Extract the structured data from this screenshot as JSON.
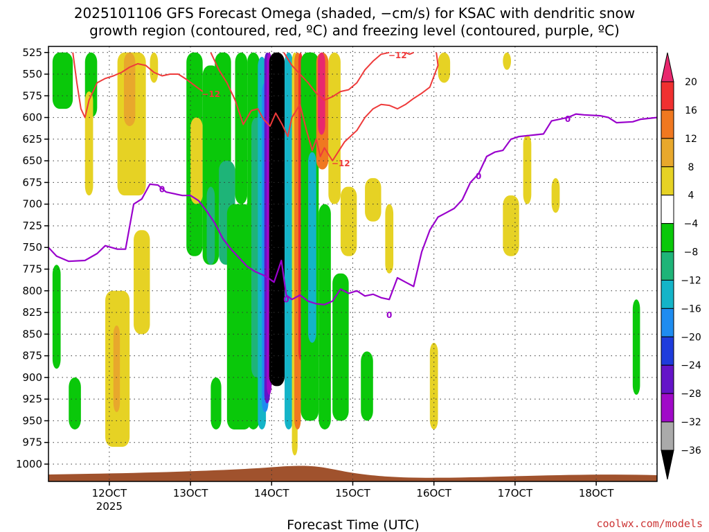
{
  "title_line1": "2025101106 GFS Forecast Omega (shaded, −cm/s) for KSAC with dendritic snow",
  "title_line2": "growth region (contoured, red, ºC) and freezing level (contoured, purple, ºC)",
  "credit": "coolwx.com/models",
  "chart_data": {
    "type": "heatmap",
    "xlabel": "Forecast Time (UTC)",
    "ylabel": "",
    "x_ticks": [
      {
        "value": 120,
        "label": "12OCT",
        "sublabel": "2025"
      },
      {
        "value": 130,
        "label": "13OCT",
        "sublabel": ""
      },
      {
        "value": 140,
        "label": "14OCT",
        "sublabel": ""
      },
      {
        "value": 150,
        "label": "15OCT",
        "sublabel": ""
      },
      {
        "value": 160,
        "label": "16OCT",
        "sublabel": ""
      },
      {
        "value": 170,
        "label": "17OCT",
        "sublabel": ""
      },
      {
        "value": 180,
        "label": "18OCT",
        "sublabel": ""
      }
    ],
    "xlim": [
      112.5,
      187.5
    ],
    "y_ticks": [
      525,
      550,
      575,
      600,
      625,
      650,
      675,
      700,
      725,
      750,
      775,
      800,
      825,
      850,
      875,
      900,
      925,
      950,
      975,
      1000
    ],
    "ylim": [
      1020,
      518
    ],
    "grid": true,
    "colorbar": {
      "labels": [
        "20",
        "16",
        "12",
        "8",
        "4",
        "−4",
        "−8",
        "−12",
        "−16",
        "−20",
        "−24",
        "−28",
        "−32",
        "−36"
      ],
      "colors": [
        "#e8286e",
        "#f03030",
        "#f07820",
        "#e8a82c",
        "#e6d224",
        "#ffffff",
        "#0ac80a",
        "#1eb478",
        "#14b4c8",
        "#1e8cf0",
        "#1e3cdc",
        "#6414c8",
        "#a00ac8",
        "#aaaaaa",
        "#000000"
      ]
    },
    "omega_features": [
      {
        "x0": 113.0,
        "x1": 115.5,
        "p0": 525,
        "p1": 590,
        "value": -6
      },
      {
        "x0": 113.0,
        "x1": 114.0,
        "p0": 770,
        "p1": 890,
        "value": -6
      },
      {
        "x0": 115.0,
        "x1": 116.5,
        "p0": 900,
        "p1": 960,
        "value": -6
      },
      {
        "x0": 117.0,
        "x1": 118.5,
        "p0": 525,
        "p1": 600,
        "value": -5
      },
      {
        "x0": 117.0,
        "x1": 118.0,
        "p0": 570,
        "p1": 690,
        "value": 5
      },
      {
        "x0": 119.5,
        "x1": 122.5,
        "p0": 800,
        "p1": 980,
        "value": 5
      },
      {
        "x0": 120.5,
        "x1": 121.3,
        "p0": 840,
        "p1": 940,
        "value": 9
      },
      {
        "x0": 121.0,
        "x1": 124.5,
        "p0": 525,
        "p1": 690,
        "value": 5
      },
      {
        "x0": 121.8,
        "x1": 123.2,
        "p0": 525,
        "p1": 610,
        "value": 9
      },
      {
        "x0": 123.0,
        "x1": 125.0,
        "p0": 730,
        "p1": 850,
        "value": 5
      },
      {
        "x0": 125.0,
        "x1": 126.0,
        "p0": 525,
        "p1": 560,
        "value": 5
      },
      {
        "x0": 129.5,
        "x1": 131.5,
        "p0": 525,
        "p1": 760,
        "value": -6
      },
      {
        "x0": 130.0,
        "x1": 131.5,
        "p0": 600,
        "p1": 700,
        "value": 5
      },
      {
        "x0": 131.5,
        "x1": 133.5,
        "p0": 540,
        "p1": 770,
        "value": -6
      },
      {
        "x0": 132.0,
        "x1": 133.0,
        "p0": 680,
        "p1": 770,
        "value": -10
      },
      {
        "x0": 133.0,
        "x1": 135.0,
        "p0": 525,
        "p1": 700,
        "value": -6
      },
      {
        "x0": 133.5,
        "x1": 135.5,
        "p0": 650,
        "p1": 770,
        "value": -10
      },
      {
        "x0": 132.5,
        "x1": 133.8,
        "p0": 900,
        "p1": 960,
        "value": -6
      },
      {
        "x0": 134.5,
        "x1": 137.5,
        "p0": 700,
        "p1": 960,
        "value": -6
      },
      {
        "x0": 135.5,
        "x1": 137.0,
        "p0": 525,
        "p1": 700,
        "value": -6
      },
      {
        "x0": 137.0,
        "x1": 138.5,
        "p0": 525,
        "p1": 960,
        "value": -6
      },
      {
        "x0": 137.5,
        "x1": 138.8,
        "p0": 600,
        "p1": 900,
        "value": -10
      },
      {
        "x0": 138.3,
        "x1": 139.3,
        "p0": 530,
        "p1": 960,
        "value": -14
      },
      {
        "x0": 138.8,
        "x1": 139.6,
        "p0": 560,
        "p1": 940,
        "value": -18
      },
      {
        "x0": 139.1,
        "x1": 139.8,
        "p0": 525,
        "p1": 930,
        "value": -26
      },
      {
        "x0": 139.4,
        "x1": 140.0,
        "p0": 525,
        "p1": 920,
        "value": -30
      },
      {
        "x0": 139.7,
        "x1": 141.6,
        "p0": 525,
        "p1": 910,
        "value": -40
      },
      {
        "x0": 141.6,
        "x1": 142.6,
        "p0": 525,
        "p1": 960,
        "value": -14
      },
      {
        "x0": 142.5,
        "x1": 143.2,
        "p0": 525,
        "p1": 990,
        "value": 5
      },
      {
        "x0": 142.8,
        "x1": 143.6,
        "p0": 525,
        "p1": 960,
        "value": 14
      },
      {
        "x0": 143.3,
        "x1": 143.8,
        "p0": 525,
        "p1": 880,
        "value": 18
      },
      {
        "x0": 143.6,
        "x1": 145.8,
        "p0": 525,
        "p1": 950,
        "value": -6
      },
      {
        "x0": 144.5,
        "x1": 145.5,
        "p0": 640,
        "p1": 860,
        "value": -14
      },
      {
        "x0": 145.5,
        "x1": 147.0,
        "p0": 525,
        "p1": 660,
        "value": 14
      },
      {
        "x0": 145.7,
        "x1": 146.6,
        "p0": 525,
        "p1": 620,
        "value": 22
      },
      {
        "x0": 145.8,
        "x1": 147.3,
        "p0": 700,
        "p1": 960,
        "value": -6
      },
      {
        "x0": 147.0,
        "x1": 148.5,
        "p0": 525,
        "p1": 700,
        "value": 5
      },
      {
        "x0": 147.5,
        "x1": 149.5,
        "p0": 780,
        "p1": 950,
        "value": -6
      },
      {
        "x0": 148.5,
        "x1": 150.5,
        "p0": 680,
        "p1": 760,
        "value": 5
      },
      {
        "x0": 151.0,
        "x1": 152.5,
        "p0": 870,
        "p1": 950,
        "value": -6
      },
      {
        "x0": 151.5,
        "x1": 153.5,
        "p0": 670,
        "p1": 720,
        "value": 5
      },
      {
        "x0": 154.0,
        "x1": 155.0,
        "p0": 700,
        "p1": 780,
        "value": 5
      },
      {
        "x0": 159.5,
        "x1": 160.5,
        "p0": 860,
        "p1": 960,
        "value": 5
      },
      {
        "x0": 160.5,
        "x1": 162.0,
        "p0": 525,
        "p1": 560,
        "value": 5
      },
      {
        "x0": 168.5,
        "x1": 169.5,
        "p0": 525,
        "p1": 545,
        "value": 5
      },
      {
        "x0": 168.5,
        "x1": 170.5,
        "p0": 690,
        "p1": 760,
        "value": 5
      },
      {
        "x0": 171.0,
        "x1": 172.0,
        "p0": 620,
        "p1": 700,
        "value": 5
      },
      {
        "x0": 174.5,
        "x1": 175.5,
        "p0": 670,
        "p1": 710,
        "value": 5
      },
      {
        "x0": 184.5,
        "x1": 185.4,
        "p0": 810,
        "p1": 920,
        "value": -6
      }
    ],
    "freezing_level": {
      "label": "0",
      "points": [
        [
          112.5,
          750
        ],
        [
          113.5,
          760
        ],
        [
          115,
          766
        ],
        [
          117,
          765
        ],
        [
          118.5,
          757
        ],
        [
          119.5,
          748
        ],
        [
          121,
          752
        ],
        [
          122,
          752
        ],
        [
          123,
          700
        ],
        [
          124,
          694
        ],
        [
          125,
          677
        ],
        [
          126,
          678
        ],
        [
          127,
          686
        ],
        [
          128,
          688
        ],
        [
          129,
          690
        ],
        [
          130,
          690
        ],
        [
          131,
          696
        ],
        [
          132,
          708
        ],
        [
          133,
          722
        ],
        [
          134,
          740
        ],
        [
          135,
          752
        ],
        [
          136,
          762
        ],
        [
          137,
          772
        ],
        [
          138,
          778
        ],
        [
          139,
          782
        ],
        [
          139.7,
          786
        ],
        [
          140.3,
          790
        ],
        [
          141.2,
          765
        ],
        [
          141.8,
          805
        ],
        [
          142.5,
          810
        ],
        [
          143.5,
          805
        ],
        [
          144.5,
          812
        ],
        [
          145.5,
          815
        ],
        [
          146.5,
          816
        ],
        [
          147.5,
          812
        ],
        [
          148.5,
          798
        ],
        [
          149.5,
          803
        ],
        [
          150.5,
          800
        ],
        [
          151.5,
          806
        ],
        [
          152.5,
          804
        ],
        [
          153.5,
          808
        ],
        [
          154.5,
          810
        ],
        [
          155.5,
          785
        ],
        [
          156.5,
          790
        ],
        [
          157.5,
          795
        ],
        [
          158.5,
          755
        ],
        [
          159.5,
          730
        ],
        [
          160.5,
          715
        ],
        [
          161.5,
          710
        ],
        [
          162.5,
          705
        ],
        [
          163.5,
          695
        ],
        [
          164.5,
          675
        ],
        [
          165.5,
          665
        ],
        [
          166.5,
          645
        ],
        [
          167.5,
          640
        ],
        [
          168.5,
          638
        ],
        [
          169.5,
          625
        ],
        [
          170.5,
          622
        ],
        [
          172.5,
          620
        ],
        [
          173.5,
          619
        ],
        [
          174.5,
          604
        ],
        [
          176.5,
          600
        ],
        [
          177.5,
          596
        ],
        [
          178.5,
          597
        ],
        [
          180.5,
          598
        ],
        [
          181.5,
          600
        ],
        [
          182.5,
          606
        ],
        [
          184.5,
          605
        ],
        [
          185.5,
          602
        ],
        [
          187.5,
          600
        ]
      ]
    },
    "dgz_contours": [
      {
        "label": "−12",
        "points": [
          [
            115.5,
            525
          ],
          [
            116.0,
            560
          ],
          [
            116.5,
            590
          ],
          [
            117.0,
            600
          ],
          [
            117.5,
            580
          ],
          [
            118.5,
            560
          ],
          [
            119.5,
            555
          ],
          [
            120.5,
            552
          ],
          [
            121.5,
            548
          ],
          [
            122.5,
            542
          ],
          [
            123.5,
            538
          ],
          [
            124.5,
            540
          ],
          [
            125.5,
            548
          ],
          [
            126.5,
            552
          ],
          [
            127.5,
            550
          ],
          [
            128.5,
            550
          ],
          [
            129.5,
            556
          ],
          [
            130.5,
            563
          ],
          [
            131.5,
            570
          ]
        ]
      },
      {
        "label": "−12",
        "points": [
          [
            132.5,
            525
          ],
          [
            133.5,
            545
          ],
          [
            134.5,
            560
          ],
          [
            135.5,
            580
          ],
          [
            136.5,
            608
          ],
          [
            137.5,
            592
          ],
          [
            138.3,
            590
          ],
          [
            139.0,
            602
          ],
          [
            139.8,
            610
          ],
          [
            140.5,
            595
          ],
          [
            141.3,
            608
          ],
          [
            142.0,
            622
          ],
          [
            142.5,
            600
          ],
          [
            143.5,
            585
          ],
          [
            144.3,
            615
          ],
          [
            145.0,
            638
          ],
          [
            145.5,
            625
          ],
          [
            146.0,
            645
          ],
          [
            146.5,
            635
          ],
          [
            147.5,
            650
          ]
        ]
      },
      {
        "label": "−12",
        "points": [
          [
            141.5,
            525
          ],
          [
            142.5,
            540
          ],
          [
            143.5,
            550
          ],
          [
            144.5,
            560
          ],
          [
            145.5,
            572
          ],
          [
            146.5,
            580
          ],
          [
            147.5,
            576
          ],
          [
            148.5,
            570
          ],
          [
            149.5,
            568
          ],
          [
            150.5,
            560
          ],
          [
            151.5,
            545
          ],
          [
            152.5,
            535
          ],
          [
            153.5,
            527
          ],
          [
            154.5,
            525
          ]
        ]
      },
      {
        "label": "",
        "points": [
          [
            147.5,
            650
          ],
          [
            149.0,
            628
          ],
          [
            150.5,
            615
          ],
          [
            151.5,
            600
          ],
          [
            152.5,
            590
          ],
          [
            153.5,
            585
          ],
          [
            154.5,
            586
          ],
          [
            155.5,
            590
          ],
          [
            156.5,
            585
          ],
          [
            157.5,
            578
          ],
          [
            158.5,
            572
          ],
          [
            159.5,
            565
          ],
          [
            160.5,
            540
          ],
          [
            160.3,
            525
          ]
        ]
      },
      {
        "label": "",
        "points": [
          [
            156.5,
            525
          ],
          [
            157.0,
            527
          ],
          [
            157.5,
            525
          ]
        ]
      }
    ]
  }
}
